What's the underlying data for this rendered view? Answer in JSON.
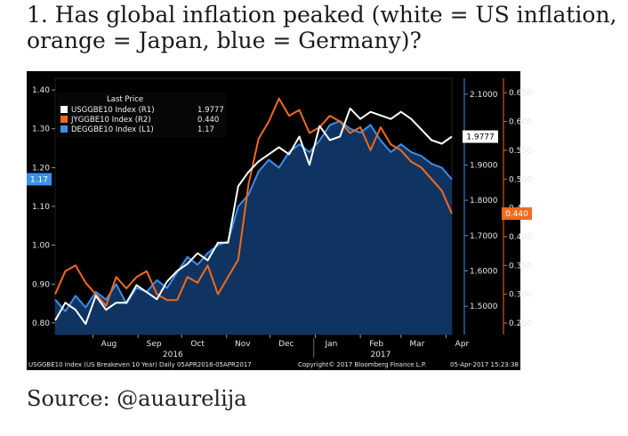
{
  "heading": "1. Has global inflation peaked (white = US inflation, orange = Japan, blue = Germany)?",
  "source": "Source: @auaurelija",
  "colors": {
    "background": "#000000",
    "us": "#ffffff",
    "japan": "#f26a1b",
    "germany": "#3a8fe8",
    "germany_fill": "#123a6b",
    "japan_tag": "#f26a1b",
    "germany_tag": "#3a8fe8"
  },
  "chart_data": {
    "type": "line",
    "title": "",
    "legend": {
      "title": "Last Price",
      "position": "top-left",
      "entries": [
        {
          "label": "USGGBE10 Index (R1)",
          "value": "1.9777",
          "color": "#ffffff"
        },
        {
          "label": "JYGGBE10 Index (R2)",
          "value": "0.440",
          "color": "#f26a1b"
        },
        {
          "label": "DEGGBE10 Index (L1)",
          "value": "1.17",
          "color": "#3a8fe8"
        }
      ]
    },
    "x_tick_labels": [
      "Aug",
      "Sep",
      "Oct",
      "Nov",
      "Dec",
      "Jan",
      "Feb",
      "Mar",
      "Apr"
    ],
    "x_tick_dates": [
      "2016-08-01",
      "2016-09-01",
      "2016-10-01",
      "2016-11-01",
      "2016-12-01",
      "2017-01-01",
      "2017-02-01",
      "2017-03-01",
      "2017-04-01"
    ],
    "year_labels": [
      {
        "label": "2016",
        "date": "2016-09-25"
      },
      {
        "label": "2017",
        "date": "2017-02-15"
      }
    ],
    "x_range": [
      "2016-07-06",
      "2017-04-05"
    ],
    "y_left": {
      "ticks": [
        "0.80",
        "0.90",
        "1.00",
        "1.10",
        "1.20",
        "1.30",
        "1.40"
      ],
      "range": [
        0.77,
        1.43
      ]
    },
    "y_right1": {
      "ticks": [
        "1.5000",
        "1.6000",
        "1.7000",
        "1.8000",
        "1.9000",
        "2.1000"
      ],
      "range": [
        1.42,
        2.145
      ]
    },
    "y_right2": {
      "ticks": [
        "0.250",
        "0.300",
        "0.350",
        "0.400",
        "0.450",
        "0.500",
        "0.550",
        "0.600",
        "0.650"
      ],
      "range": [
        0.23,
        0.675
      ]
    },
    "last_price_tags": {
      "us": "1.9777",
      "japan": "0.440",
      "germany": "1.17"
    },
    "series": [
      {
        "name": "USGGBE10 Index (R1)",
        "axis": "right1",
        "color": "#ffffff",
        "x": [
          "2016-07-06",
          "2016-07-13",
          "2016-07-20",
          "2016-07-27",
          "2016-08-03",
          "2016-08-10",
          "2016-08-17",
          "2016-08-24",
          "2016-08-31",
          "2016-09-07",
          "2016-09-14",
          "2016-09-21",
          "2016-09-28",
          "2016-10-05",
          "2016-10-12",
          "2016-10-19",
          "2016-10-26",
          "2016-11-02",
          "2016-11-09",
          "2016-11-16",
          "2016-11-23",
          "2016-11-30",
          "2016-12-07",
          "2016-12-14",
          "2016-12-21",
          "2016-12-28",
          "2017-01-04",
          "2017-01-11",
          "2017-01-18",
          "2017-01-25",
          "2017-02-01",
          "2017-02-08",
          "2017-02-15",
          "2017-02-22",
          "2017-03-01",
          "2017-03-08",
          "2017-03-15",
          "2017-03-22",
          "2017-03-29",
          "2017-04-05"
        ],
        "values": [
          1.46,
          1.51,
          1.49,
          1.45,
          1.53,
          1.49,
          1.51,
          1.51,
          1.56,
          1.54,
          1.52,
          1.57,
          1.6,
          1.62,
          1.65,
          1.63,
          1.68,
          1.68,
          1.84,
          1.88,
          1.91,
          1.93,
          1.95,
          1.93,
          1.98,
          1.9,
          2.01,
          1.97,
          1.98,
          2.06,
          2.03,
          2.05,
          2.04,
          2.03,
          2.05,
          2.03,
          2.0,
          1.97,
          1.96,
          1.98
        ]
      },
      {
        "name": "JYGGBE10 Index (R2)",
        "axis": "right2",
        "color": "#f26a1b",
        "x": [
          "2016-07-06",
          "2016-07-13",
          "2016-07-20",
          "2016-07-27",
          "2016-08-03",
          "2016-08-10",
          "2016-08-17",
          "2016-08-24",
          "2016-08-31",
          "2016-09-07",
          "2016-09-14",
          "2016-09-21",
          "2016-09-28",
          "2016-10-05",
          "2016-10-12",
          "2016-10-19",
          "2016-10-26",
          "2016-11-02",
          "2016-11-09",
          "2016-11-16",
          "2016-11-23",
          "2016-11-30",
          "2016-12-07",
          "2016-12-14",
          "2016-12-21",
          "2016-12-28",
          "2017-01-04",
          "2017-01-11",
          "2017-01-18",
          "2017-01-25",
          "2017-02-01",
          "2017-02-08",
          "2017-02-15",
          "2017-02-22",
          "2017-03-01",
          "2017-03-08",
          "2017-03-15",
          "2017-03-22",
          "2017-03-29",
          "2017-04-05"
        ],
        "values": [
          0.3,
          0.34,
          0.35,
          0.32,
          0.3,
          0.28,
          0.33,
          0.31,
          0.33,
          0.34,
          0.3,
          0.29,
          0.29,
          0.33,
          0.32,
          0.35,
          0.3,
          0.33,
          0.36,
          0.49,
          0.57,
          0.6,
          0.64,
          0.61,
          0.62,
          0.58,
          0.59,
          0.61,
          0.6,
          0.58,
          0.59,
          0.55,
          0.59,
          0.56,
          0.55,
          0.53,
          0.52,
          0.5,
          0.48,
          0.44
        ]
      },
      {
        "name": "DEGGBE10 Index (L1)",
        "axis": "left",
        "color": "#3a8fe8",
        "x": [
          "2016-07-06",
          "2016-07-13",
          "2016-07-20",
          "2016-07-27",
          "2016-08-03",
          "2016-08-10",
          "2016-08-17",
          "2016-08-24",
          "2016-08-31",
          "2016-09-07",
          "2016-09-14",
          "2016-09-21",
          "2016-09-28",
          "2016-10-05",
          "2016-10-12",
          "2016-10-19",
          "2016-10-26",
          "2016-11-02",
          "2016-11-09",
          "2016-11-16",
          "2016-11-23",
          "2016-11-30",
          "2016-12-07",
          "2016-12-14",
          "2016-12-21",
          "2016-12-28",
          "2017-01-04",
          "2017-01-11",
          "2017-01-18",
          "2017-01-25",
          "2017-02-01",
          "2017-02-08",
          "2017-02-15",
          "2017-02-22",
          "2017-03-01",
          "2017-03-08",
          "2017-03-15",
          "2017-03-22",
          "2017-03-29",
          "2017-04-05"
        ],
        "values": [
          0.86,
          0.83,
          0.87,
          0.84,
          0.88,
          0.86,
          0.9,
          0.85,
          0.89,
          0.88,
          0.91,
          0.89,
          0.93,
          0.97,
          0.95,
          0.98,
          1.0,
          1.01,
          1.1,
          1.13,
          1.19,
          1.22,
          1.2,
          1.24,
          1.26,
          1.24,
          1.27,
          1.31,
          1.32,
          1.3,
          1.29,
          1.31,
          1.27,
          1.24,
          1.26,
          1.24,
          1.23,
          1.21,
          1.2,
          1.17
        ]
      }
    ],
    "footer": {
      "left": "USGGBE10 Index (US Breakeven 10 Year)  Daily 05APR2016-05APR2017",
      "center": "Copyright© 2017 Bloomberg Finance L.P.",
      "right": "05-Apr-2017 15:23:38"
    }
  }
}
